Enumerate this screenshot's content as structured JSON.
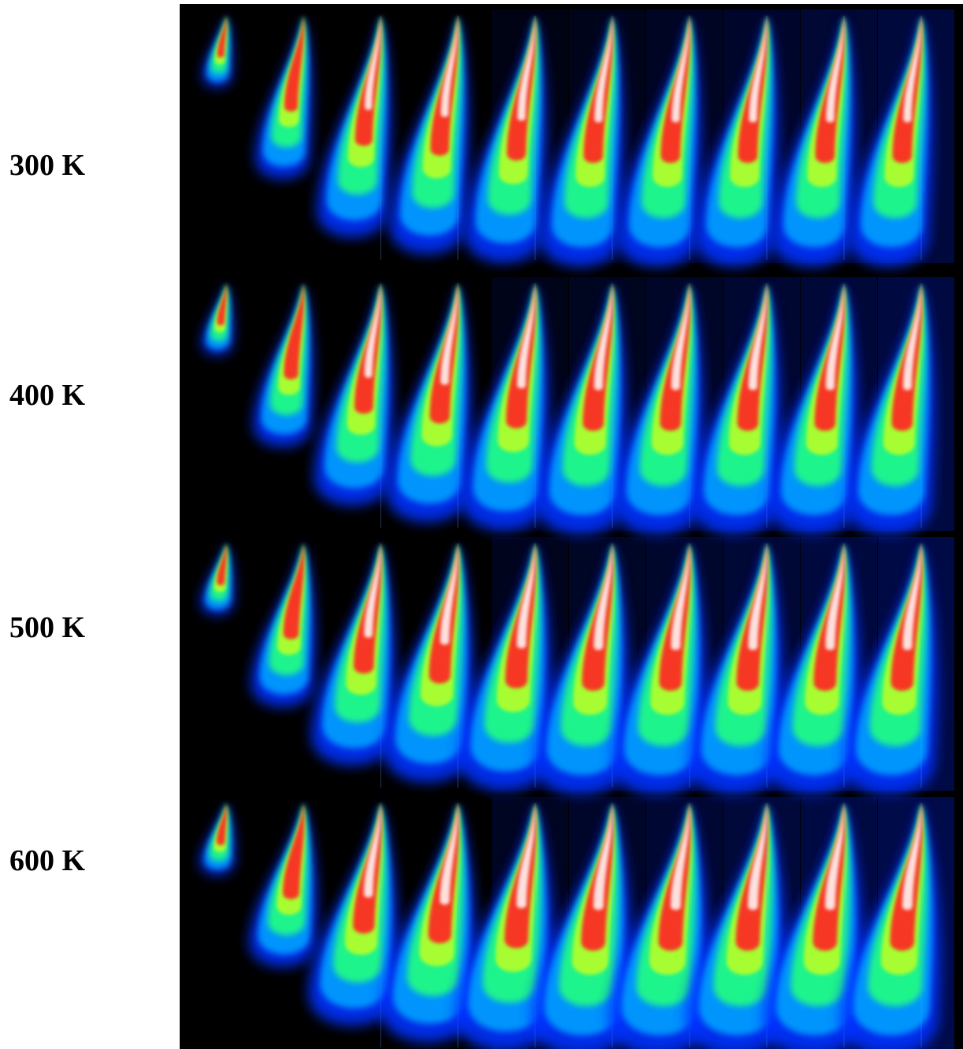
{
  "row_labels": [
    "300 K",
    "400 K",
    "500 K",
    "600 K"
  ]
}
